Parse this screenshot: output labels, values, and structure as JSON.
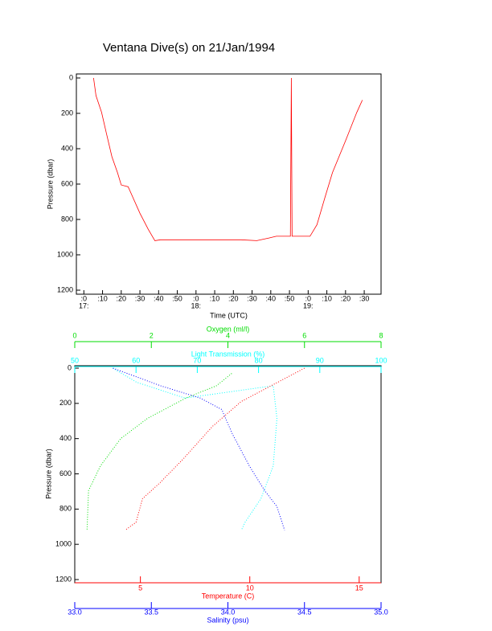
{
  "title": "Ventana Dive(s) on 21/Jan/1994",
  "chart_data": [
    {
      "type": "line",
      "xlabel": "Time (UTC)",
      "ylabel": "Pressure (dbar)",
      "color": "#ff0000",
      "x": [
        5.2,
        6.5,
        9.5,
        12,
        15,
        18,
        20,
        23.7,
        26,
        30,
        34.4,
        38,
        41,
        84,
        92.5,
        99,
        103,
        110.5,
        111,
        111.4,
        121,
        124.7,
        129,
        133,
        140,
        146,
        149
      ],
      "values": [
        0,
        100,
        195,
        310,
        445,
        535,
        605,
        615,
        670,
        765,
        855,
        920,
        915,
        915,
        920,
        905,
        895,
        895,
        0,
        895,
        895,
        830,
        675,
        535,
        355,
        195,
        125
      ],
      "xlim": [
        -4,
        159
      ],
      "xticks": [
        {
          "value": 0,
          "label": ":0"
        },
        {
          "value": 10,
          "label": ":10"
        },
        {
          "value": 20,
          "label": ":20"
        },
        {
          "value": 30,
          "label": ":30"
        },
        {
          "value": 40,
          "label": ":40"
        },
        {
          "value": 50,
          "label": ":50"
        },
        {
          "value": 60,
          "label": ":0"
        },
        {
          "value": 70,
          "label": ":10"
        },
        {
          "value": 80,
          "label": ":20"
        },
        {
          "value": 90,
          "label": ":30"
        },
        {
          "value": 100,
          "label": ":40"
        },
        {
          "value": 110,
          "label": ":50"
        },
        {
          "value": 120,
          "label": ":0"
        },
        {
          "value": 130,
          "label": ":10"
        },
        {
          "value": 140,
          "label": ":20"
        },
        {
          "value": 150,
          "label": ":30"
        }
      ],
      "xticks_hour": [
        {
          "value": 0,
          "label": "17:"
        },
        {
          "value": 60,
          "label": "18:"
        },
        {
          "value": 120,
          "label": "19:"
        }
      ],
      "ylim": [
        0,
        1200
      ],
      "yticks": [
        0,
        200,
        400,
        600,
        800,
        1000,
        1200
      ],
      "y_inverted": true
    },
    {
      "type": "profile",
      "ylabel": "Pressure (dbar)",
      "ylim": [
        0,
        1200
      ],
      "yticks": [
        0,
        200,
        400,
        600,
        800,
        1000,
        1200
      ],
      "y_inverted": true,
      "x_axes": [
        {
          "label": "Oxygen (ml/l)",
          "color": "#00dd00",
          "xlim": [
            0,
            8
          ],
          "xticks": [
            0,
            2,
            4,
            6,
            8
          ]
        },
        {
          "label": "Light Transmission (%)",
          "color": "#00ffff",
          "xlim": [
            50,
            100
          ],
          "xticks": [
            50,
            60,
            70,
            80,
            90,
            100
          ]
        },
        {
          "label": "Temperature (C)",
          "color": "#ff0000",
          "xlim": [
            2,
            16
          ],
          "xticks": [
            5,
            10,
            15
          ]
        },
        {
          "label": "Salinity (psu)",
          "color": "#0000ff",
          "xlim": [
            33,
            35
          ],
          "xticks": [
            {
              "value": 33,
              "label": "33.0"
            },
            {
              "value": 33.5,
              "label": "33.5"
            },
            {
              "value": 34,
              "label": "34.0"
            },
            {
              "value": 34.5,
              "label": "34.5"
            },
            {
              "value": 35,
              "label": "35.0"
            }
          ]
        }
      ],
      "series": [
        {
          "axis": 0,
          "values": [
            4.1,
            3.7,
            2.9,
            1.9,
            1.2,
            0.67,
            0.36,
            0.32
          ],
          "pressure": [
            30,
            100,
            170,
            285,
            400,
            555,
            695,
            920
          ]
        },
        {
          "axis": 1,
          "values": [
            56.2,
            60.1,
            68,
            82.4,
            83,
            82.4,
            80.4,
            77.8,
            77.2
          ],
          "pressure": [
            0,
            80,
            170,
            100,
            285,
            555,
            740,
            875,
            920
          ]
        },
        {
          "axis": 2,
          "values": [
            12.5,
            9.6,
            8.3,
            7,
            5.9,
            5.1,
            4.8,
            4.3
          ],
          "pressure": [
            0,
            190,
            330,
            510,
            650,
            740,
            875,
            920
          ]
        },
        {
          "axis": 3,
          "values": [
            33.25,
            33.56,
            33.82,
            33.96,
            34.03,
            34.14,
            34.24,
            34.32,
            34.37
          ],
          "pressure": [
            0,
            100,
            170,
            235,
            375,
            555,
            695,
            785,
            920
          ]
        }
      ]
    }
  ]
}
